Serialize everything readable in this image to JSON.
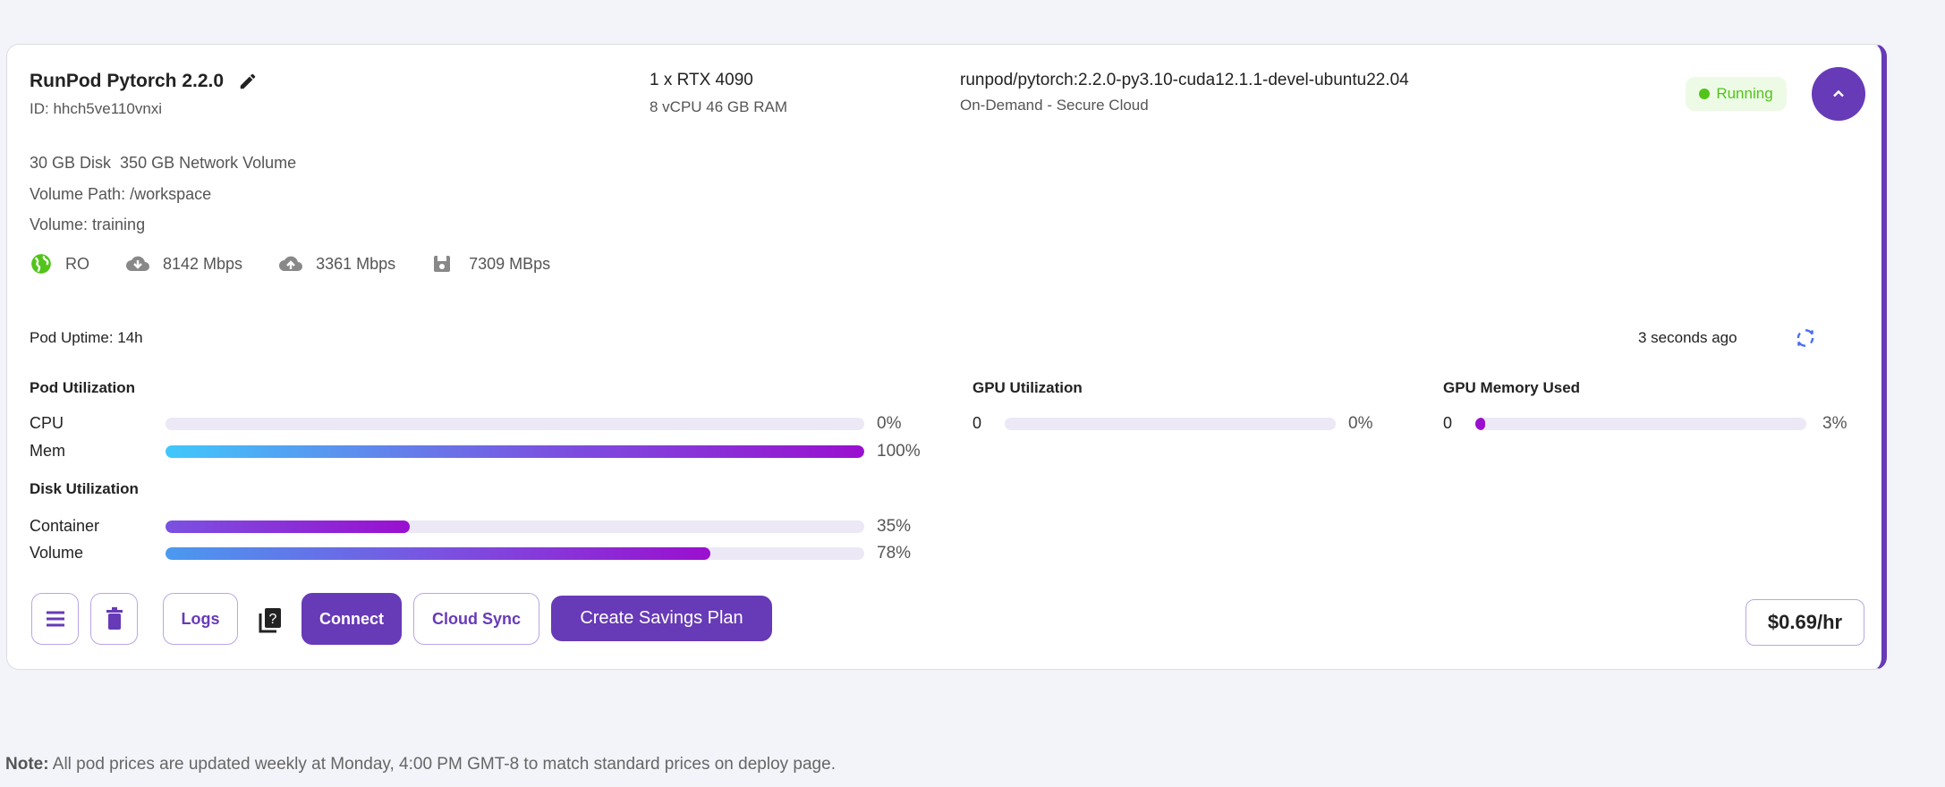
{
  "pod": {
    "name": "RunPod Pytorch 2.2.0",
    "id": "ID: hhch5ve110vnxi",
    "gpu": "1 x RTX 4090",
    "specs": "8 vCPU 46 GB RAM",
    "image": "runpod/pytorch:2.2.0-py3.10-cuda12.1.1-devel-ubuntu22.04",
    "cloud": "On-Demand - Secure Cloud",
    "status": "Running",
    "status_color": "#52c41a",
    "disk": "30 GB Disk",
    "network_volume": "350 GB Network Volume",
    "volume_path": "Volume Path: /workspace",
    "volume": "Volume: training",
    "region": "RO",
    "download": "8142 Mbps",
    "upload": "3361 Mbps",
    "disk_speed": "7309 MBps"
  },
  "metrics": {
    "uptime": "Pod Uptime: 14h",
    "updated": "3 seconds ago",
    "pod_util_title": "Pod Utilization",
    "cpu_label": "CPU",
    "cpu": 0,
    "cpu_text": "0%",
    "mem_label": "Mem",
    "mem": 100,
    "mem_text": "100%",
    "disk_util_title": "Disk Utilization",
    "container_label": "Container",
    "container": 35,
    "container_text": "35%",
    "volume_label": "Volume",
    "volume": 78,
    "volume_text": "78%",
    "gpu_util_title": "GPU Utilization",
    "gpu_util_index": "0",
    "gpu_util": 0,
    "gpu_util_text": "0%",
    "gpu_mem_title": "GPU Memory Used",
    "gpu_mem_index": "0",
    "gpu_mem": 3,
    "gpu_mem_text": "3%"
  },
  "actions": {
    "logs": "Logs",
    "connect": "Connect",
    "cloud_sync": "Cloud Sync",
    "savings": "Create Savings Plan",
    "price": "$0.69/hr"
  },
  "note": {
    "label": "Note:",
    "text": " All pod prices are updated weekly at Monday, 4:00 PM GMT-8 to match standard prices on deploy page."
  },
  "colors": {
    "accent": "#673ab7",
    "refresh": "#4a6cf7"
  }
}
